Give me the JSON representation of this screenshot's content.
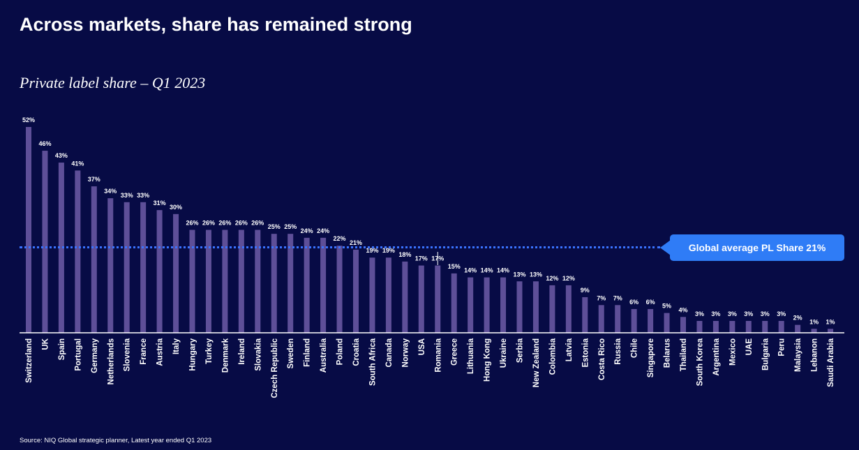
{
  "header": {
    "title": "Across markets, share has remained strong",
    "subtitle": "Private label share – Q1 2023"
  },
  "footer": {
    "source": "Source: NIQ Global strategic planner, Latest year ended Q1 2023"
  },
  "callout": {
    "label": "Global average PL Share 21%"
  },
  "colors": {
    "background": "#070b45",
    "bar": "#5e4f98",
    "average_line": "#3a73ff",
    "callout": "#2f7cf6",
    "text": "#ffffff"
  },
  "chart_data": {
    "type": "bar",
    "title": "Private label share – Q1 2023",
    "xlabel": "",
    "ylabel": "",
    "ylim": [
      0,
      52
    ],
    "grid": false,
    "categories": [
      "Switzerland",
      "UK",
      "Spain",
      "Portugal",
      "Germany",
      "Netherlands",
      "Slovenia",
      "France",
      "Austria",
      "Italy",
      "Hungary",
      "Turkey",
      "Denmark",
      "Ireland",
      "Slovakia",
      "Czech Republic",
      "Sweden",
      "Finland",
      "Australia",
      "Poland",
      "Croatia",
      "South Africa",
      "Canada",
      "Norway",
      "USA",
      "Romania",
      "Greece",
      "Lithuania",
      "Hong Kong",
      "Ukraine",
      "Serbia",
      "New Zealand",
      "Colombia",
      "Latvia",
      "Estonia",
      "Costa Rico",
      "Russia",
      "Chile",
      "Singapore",
      "Belarus",
      "Thailand",
      "South Korea",
      "Argentina",
      "Mexico",
      "UAE",
      "Bulgaria",
      "Peru",
      "Malaysia",
      "Lebanon",
      "Saudi Arabia"
    ],
    "values": [
      52,
      46,
      43,
      41,
      37,
      34,
      33,
      33,
      31,
      30,
      26,
      26,
      26,
      26,
      26,
      25,
      25,
      24,
      24,
      22,
      21,
      19,
      19,
      18,
      17,
      17,
      15,
      14,
      14,
      14,
      13,
      13,
      12,
      12,
      9,
      7,
      7,
      6,
      6,
      5,
      4,
      3,
      3,
      3,
      3,
      3,
      3,
      2,
      1,
      1
    ],
    "value_labels": [
      "52%",
      "46%",
      "43%",
      "41%",
      "37%",
      "34%",
      "33%",
      "33%",
      "31%",
      "30%",
      "26%",
      "26%",
      "26%",
      "26%",
      "26%",
      "25%",
      "25%",
      "24%",
      "24%",
      "22%",
      "21%",
      "19%",
      "19%",
      "18%",
      "17%",
      "17%",
      "15%",
      "14%",
      "14%",
      "14%",
      "13%",
      "13%",
      "12%",
      "12%",
      "9%",
      "7%",
      "7%",
      "6%",
      "6%",
      "5%",
      "4%",
      "3%",
      "3%",
      "3%",
      "3%",
      "3%",
      "3%",
      "2%",
      "1%",
      "1%"
    ],
    "reference_line": {
      "value": 21,
      "label": "Global average PL Share 21%"
    }
  }
}
